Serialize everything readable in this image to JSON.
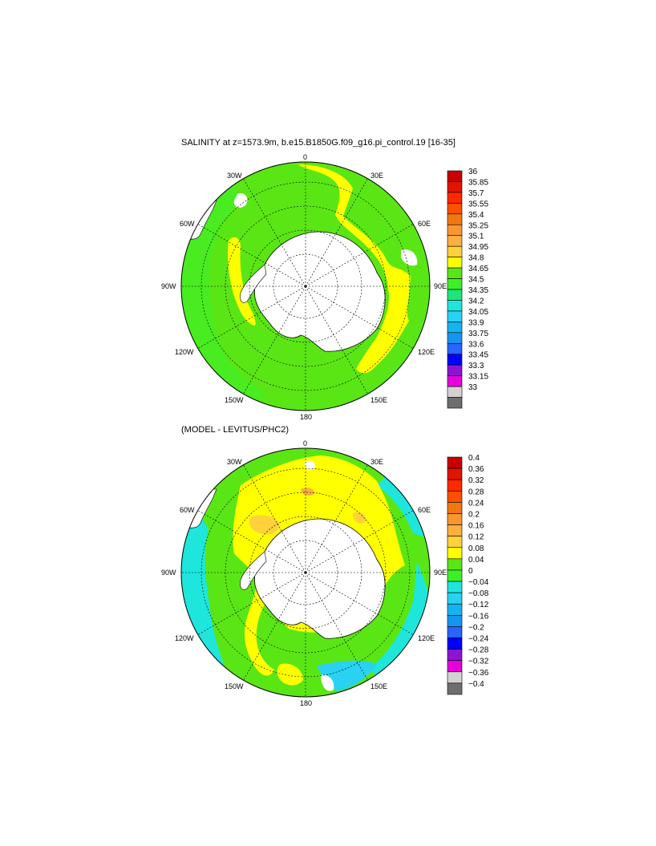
{
  "panels": [
    {
      "title": "SALINITY at z=1573.9m, b.e15.B1850G.f09_g16.pi_control.19 [16-35]",
      "lon_labels": [
        "0",
        "30E",
        "60E",
        "90E",
        "120E",
        "150E",
        "180",
        "150W",
        "120W",
        "90W",
        "60W",
        "30W"
      ],
      "colorbar_labels": [
        "36",
        "35.85",
        "35.7",
        "35.55",
        "35.4",
        "35.25",
        "35.1",
        "34.95",
        "34.8",
        "34.65",
        "34.5",
        "34.35",
        "34.2",
        "34.05",
        "33.9",
        "33.75",
        "33.6",
        "33.45",
        "33.3",
        "33.15",
        "33"
      ],
      "colorbar_colors": [
        "#c80000",
        "#e01400",
        "#ff2800",
        "#ff5000",
        "#f07810",
        "#f89630",
        "#fbb040",
        "#ffd23c",
        "#ffff00",
        "#5ae614",
        "#3cf028",
        "#1ee678",
        "#1ee6dc",
        "#28d2f0",
        "#14b4f0",
        "#1496f0",
        "#2864ff",
        "#0000ff",
        "#8c14d2",
        "#e600dc",
        "#d2d2d2",
        "#6e6e6e"
      ]
    },
    {
      "title": "(MODEL - LEVITUS/PHC2)",
      "lon_labels": [
        "0",
        "30E",
        "60E",
        "90E",
        "120E",
        "150E",
        "180",
        "150W",
        "120W",
        "90W",
        "60W",
        "30W"
      ],
      "colorbar_labels": [
        "0.4",
        "0.36",
        "0.32",
        "0.28",
        "0.24",
        "0.2",
        "0.16",
        "0.12",
        "0.08",
        "0.04",
        "0",
        "−0.04",
        "−0.08",
        "−0.12",
        "−0.16",
        "−0.2",
        "−0.24",
        "−0.28",
        "−0.32",
        "−0.36",
        "−0.4"
      ],
      "colorbar_colors": [
        "#c80000",
        "#e01400",
        "#ff2800",
        "#ff5000",
        "#f07810",
        "#f89630",
        "#fbb040",
        "#ffd23c",
        "#ffff00",
        "#5ae614",
        "#3cf028",
        "#1ee6dc",
        "#28d2f0",
        "#14b4f0",
        "#1496f0",
        "#2864ff",
        "#0000ff",
        "#8c14d2",
        "#e600dc",
        "#d2d2d2",
        "#6e6e6e"
      ]
    }
  ]
}
